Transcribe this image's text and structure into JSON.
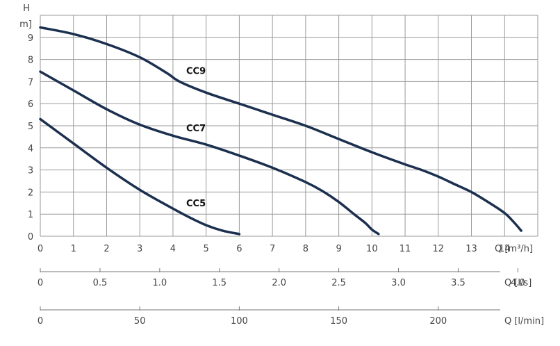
{
  "chart_data": {
    "type": "line",
    "title": "",
    "ylabel_top": "H",
    "ylabel_unit": "m]",
    "ylim": [
      0,
      10
    ],
    "yticks": [
      "0",
      "1",
      "2",
      "3",
      "4",
      "5",
      "6",
      "7",
      "8",
      "9"
    ],
    "grid": true,
    "x_axes": [
      {
        "unit_label": "Q [m³/h]",
        "range": [
          0,
          15
        ],
        "ticks": [
          "0",
          "1",
          "2",
          "3",
          "4",
          "5",
          "6",
          "7",
          "8",
          "9",
          "10",
          "11",
          "12",
          "13",
          "14"
        ]
      },
      {
        "unit_label": "Q [l/s]",
        "ticks": [
          "0",
          "0.5",
          "1.0",
          "1.5",
          "2.0",
          "2.5",
          "3.0",
          "3.5",
          "4.0"
        ]
      },
      {
        "unit_label": "Q [l/min]",
        "ticks": [
          "0",
          "50",
          "100",
          "150",
          "200"
        ]
      }
    ],
    "series": [
      {
        "name": "CC9",
        "x": [
          0,
          1,
          2,
          3,
          3.8,
          4.2,
          5,
          6,
          7,
          8,
          9,
          10,
          11,
          11.5,
          12,
          12.5,
          13,
          13.5,
          14,
          14.3,
          14.5
        ],
        "y": [
          9.45,
          9.15,
          8.7,
          8.1,
          7.4,
          7.0,
          6.5,
          6.0,
          5.5,
          5.0,
          4.4,
          3.8,
          3.25,
          3.0,
          2.7,
          2.35,
          2.0,
          1.55,
          1.05,
          0.6,
          0.25
        ]
      },
      {
        "name": "CC7",
        "x": [
          0,
          1,
          2,
          3,
          4,
          5,
          6,
          7,
          8,
          8.5,
          9,
          9.5,
          9.8,
          10,
          10.2
        ],
        "y": [
          7.45,
          6.6,
          5.75,
          5.05,
          4.55,
          4.15,
          3.65,
          3.1,
          2.45,
          2.05,
          1.55,
          0.95,
          0.6,
          0.3,
          0.1
        ]
      },
      {
        "name": "CC5",
        "x": [
          0,
          1,
          2,
          3,
          4,
          4.5,
          5,
          5.5,
          6
        ],
        "y": [
          5.3,
          4.2,
          3.1,
          2.1,
          1.25,
          0.85,
          0.5,
          0.25,
          0.1
        ]
      }
    ]
  }
}
